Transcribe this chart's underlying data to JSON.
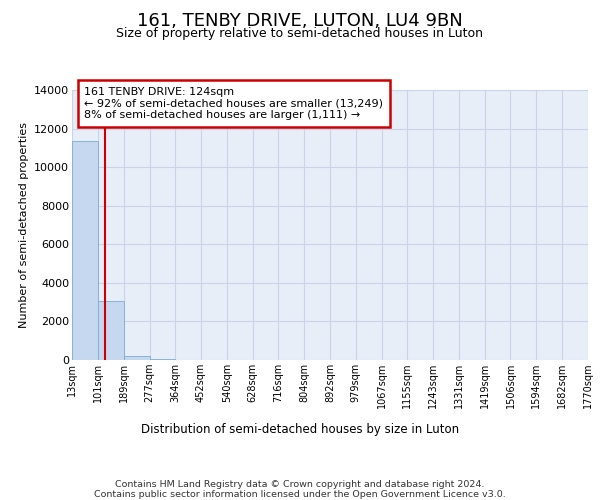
{
  "title": "161, TENBY DRIVE, LUTON, LU4 9BN",
  "subtitle": "Size of property relative to semi-detached houses in Luton",
  "xlabel": "Distribution of semi-detached houses by size in Luton",
  "ylabel": "Number of semi-detached properties",
  "annotation_line1": "161 TENBY DRIVE: 124sqm",
  "annotation_line2": "← 92% of semi-detached houses are smaller (13,249)",
  "annotation_line3": "8% of semi-detached houses are larger (1,111) →",
  "footer_line1": "Contains HM Land Registry data © Crown copyright and database right 2024.",
  "footer_line2": "Contains public sector information licensed under the Open Government Licence v3.0.",
  "property_line_x": 124,
  "bin_edges": [
    13,
    101,
    189,
    277,
    364,
    452,
    540,
    628,
    716,
    804,
    892,
    979,
    1067,
    1155,
    1243,
    1331,
    1419,
    1506,
    1594,
    1682,
    1770
  ],
  "bar_heights": [
    11350,
    3050,
    230,
    50,
    20,
    10,
    5,
    3,
    2,
    1,
    1,
    0,
    0,
    0,
    0,
    0,
    0,
    0,
    0,
    0
  ],
  "tick_labels": [
    "13sqm",
    "101sqm",
    "189sqm",
    "277sqm",
    "364sqm",
    "452sqm",
    "540sqm",
    "628sqm",
    "716sqm",
    "804sqm",
    "892sqm",
    "979sqm",
    "1067sqm",
    "1155sqm",
    "1243sqm",
    "1331sqm",
    "1419sqm",
    "1506sqm",
    "1594sqm",
    "1682sqm",
    "1770sqm"
  ],
  "bar_color": "#c5d8f0",
  "bar_edge_color": "#7aadd4",
  "grid_color": "#c8d4e8",
  "background_color": "#e8eef8",
  "annotation_box_facecolor": "#ffffff",
  "annotation_border_color": "#cc0000",
  "property_line_color": "#cc0000",
  "ylim": [
    0,
    14000
  ],
  "yticks": [
    0,
    2000,
    4000,
    6000,
    8000,
    10000,
    12000,
    14000
  ],
  "title_fontsize": 13,
  "subtitle_fontsize": 9
}
